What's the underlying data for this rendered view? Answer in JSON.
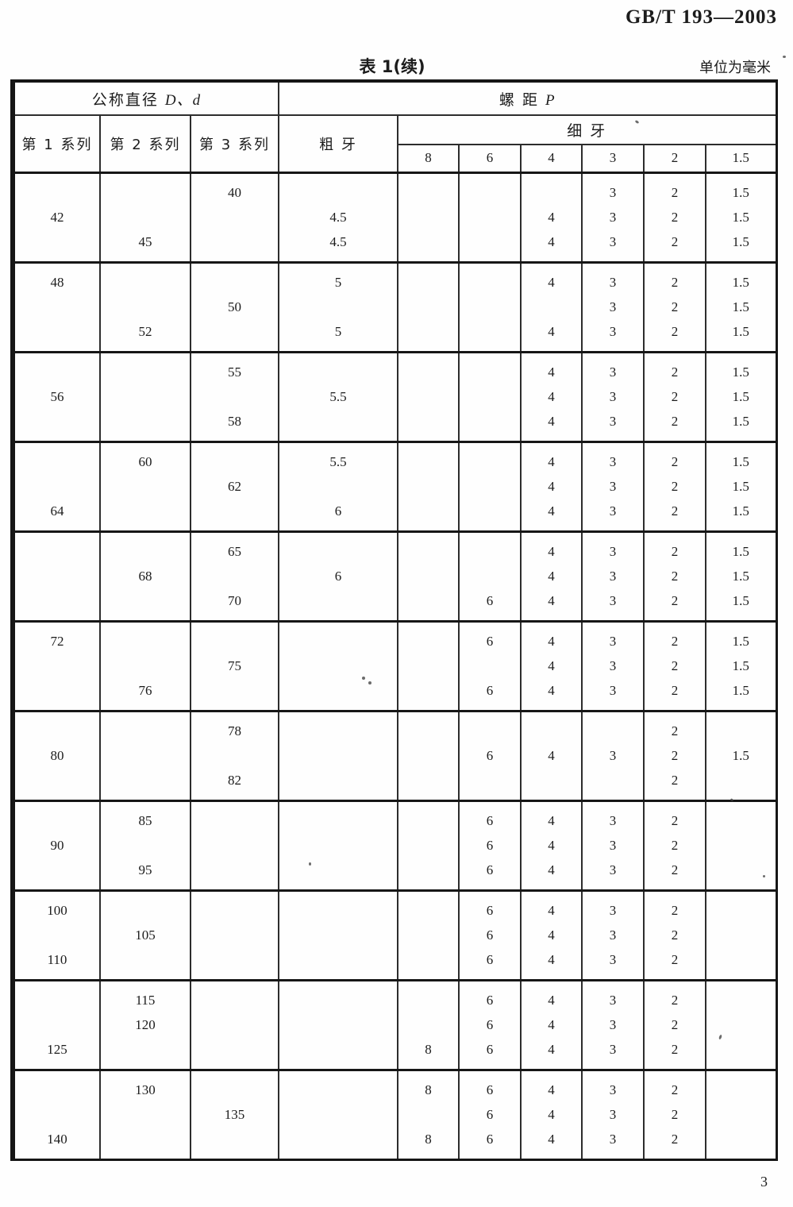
{
  "page": {
    "doc_number": "GB/T 193—2003",
    "table_title": "表 1(续)",
    "unit_note": "单位为毫米",
    "page_number": "3"
  },
  "table": {
    "header": {
      "nominal_diameter_prefix": "公称直径 ",
      "nominal_diameter_symbols": "D、d",
      "pitch_prefix": "螺  距  ",
      "pitch_symbol": "P",
      "series1": "第 1 系列",
      "series2": "第 2 系列",
      "series3": "第 3 系列",
      "coarse": "粗  牙",
      "fine": "细  牙",
      "fine_columns": [
        "8",
        "6",
        "4",
        "3",
        "2",
        "1.5"
      ]
    },
    "column_keys": [
      "series1",
      "series2",
      "series3",
      "coarse",
      "fine8",
      "fine6",
      "fine4",
      "fine3",
      "fine2",
      "fine1_5"
    ],
    "blocks": [
      {
        "rows": [
          [
            "",
            "",
            "40",
            "",
            "",
            "",
            "",
            "3",
            "2",
            "1.5"
          ],
          [
            "42",
            "",
            "",
            "4.5",
            "",
            "",
            "4",
            "3",
            "2",
            "1.5"
          ],
          [
            "",
            "45",
            "",
            "4.5",
            "",
            "",
            "4",
            "3",
            "2",
            "1.5"
          ]
        ]
      },
      {
        "rows": [
          [
            "48",
            "",
            "",
            "5",
            "",
            "",
            "4",
            "3",
            "2",
            "1.5"
          ],
          [
            "",
            "",
            "50",
            "",
            "",
            "",
            "",
            "3",
            "2",
            "1.5"
          ],
          [
            "",
            "52",
            "",
            "5",
            "",
            "",
            "4",
            "3",
            "2",
            "1.5"
          ]
        ]
      },
      {
        "rows": [
          [
            "",
            "",
            "55",
            "",
            "",
            "",
            "4",
            "3",
            "2",
            "1.5"
          ],
          [
            "56",
            "",
            "",
            "5.5",
            "",
            "",
            "4",
            "3",
            "2",
            "1.5"
          ],
          [
            "",
            "",
            "58",
            "",
            "",
            "",
            "4",
            "3",
            "2",
            "1.5"
          ]
        ]
      },
      {
        "rows": [
          [
            "",
            "60",
            "",
            "5.5",
            "",
            "",
            "4",
            "3",
            "2",
            "1.5"
          ],
          [
            "",
            "",
            "62",
            "",
            "",
            "",
            "4",
            "3",
            "2",
            "1.5"
          ],
          [
            "64",
            "",
            "",
            "6",
            "",
            "",
            "4",
            "3",
            "2",
            "1.5"
          ]
        ]
      },
      {
        "rows": [
          [
            "",
            "",
            "65",
            "",
            "",
            "",
            "4",
            "3",
            "2",
            "1.5"
          ],
          [
            "",
            "68",
            "",
            "6",
            "",
            "",
            "4",
            "3",
            "2",
            "1.5"
          ],
          [
            "",
            "",
            "70",
            "",
            "",
            "6",
            "4",
            "3",
            "2",
            "1.5"
          ]
        ]
      },
      {
        "rows": [
          [
            "72",
            "",
            "",
            "",
            "",
            "6",
            "4",
            "3",
            "2",
            "1.5"
          ],
          [
            "",
            "",
            "75",
            "",
            "",
            "",
            "4",
            "3",
            "2",
            "1.5"
          ],
          [
            "",
            "76",
            "",
            "",
            "",
            "6",
            "4",
            "3",
            "2",
            "1.5"
          ]
        ]
      },
      {
        "rows": [
          [
            "",
            "",
            "78",
            "",
            "",
            "",
            "",
            "",
            "2",
            ""
          ],
          [
            "80",
            "",
            "",
            "",
            "",
            "6",
            "4",
            "3",
            "2",
            "1.5"
          ],
          [
            "",
            "",
            "82",
            "",
            "",
            "",
            "",
            "",
            "2",
            ""
          ]
        ]
      },
      {
        "rows": [
          [
            "",
            "85",
            "",
            "",
            "",
            "6",
            "4",
            "3",
            "2",
            ""
          ],
          [
            "90",
            "",
            "",
            "",
            "",
            "6",
            "4",
            "3",
            "2",
            ""
          ],
          [
            "",
            "95",
            "",
            "",
            "",
            "6",
            "4",
            "3",
            "2",
            ""
          ]
        ]
      },
      {
        "rows": [
          [
            "100",
            "",
            "",
            "",
            "",
            "6",
            "4",
            "3",
            "2",
            ""
          ],
          [
            "",
            "105",
            "",
            "",
            "",
            "6",
            "4",
            "3",
            "2",
            ""
          ],
          [
            "110",
            "",
            "",
            "",
            "",
            "6",
            "4",
            "3",
            "2",
            ""
          ]
        ]
      },
      {
        "rows": [
          [
            "",
            "115",
            "",
            "",
            "",
            "6",
            "4",
            "3",
            "2",
            ""
          ],
          [
            "",
            "120",
            "",
            "",
            "",
            "6",
            "4",
            "3",
            "2",
            ""
          ],
          [
            "125",
            "",
            "",
            "",
            "8",
            "6",
            "4",
            "3",
            "2",
            ""
          ]
        ]
      },
      {
        "rows": [
          [
            "",
            "130",
            "",
            "",
            "8",
            "6",
            "4",
            "3",
            "2",
            ""
          ],
          [
            "",
            "",
            "135",
            "",
            "",
            "6",
            "4",
            "3",
            "2",
            ""
          ],
          [
            "140",
            "",
            "",
            "",
            "8",
            "6",
            "4",
            "3",
            "2",
            ""
          ]
        ]
      }
    ]
  }
}
